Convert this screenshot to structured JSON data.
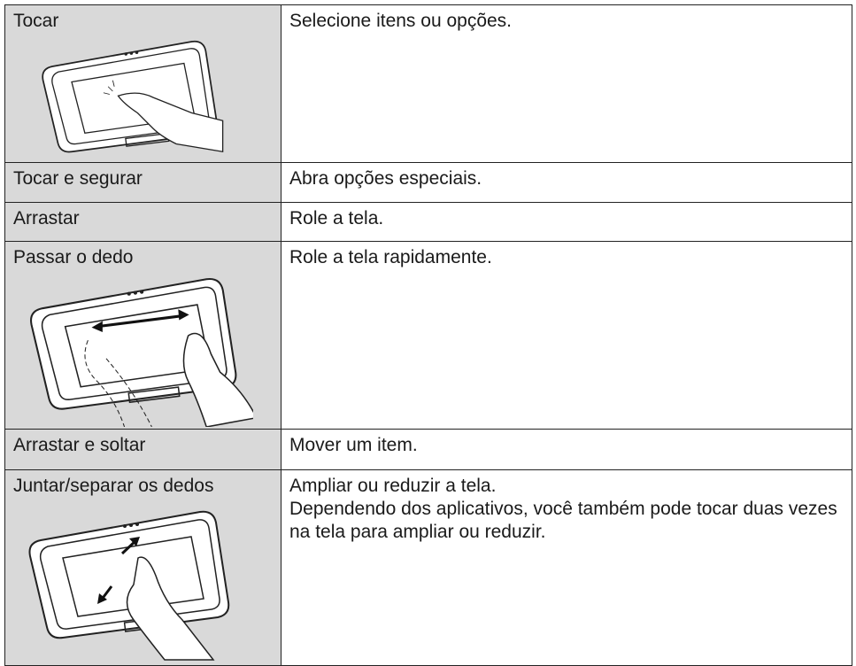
{
  "table": {
    "rows": [
      {
        "gesture": "Tocar",
        "description": [
          "Selecione itens ou opções."
        ]
      },
      {
        "gesture": "Tocar e segurar",
        "description": [
          "Abra opções especiais."
        ]
      },
      {
        "gesture": "Arrastar",
        "description": [
          "Role a tela."
        ]
      },
      {
        "gesture": "Passar o dedo",
        "description": [
          "Role a tela rapidamente."
        ]
      },
      {
        "gesture": "Arrastar e soltar",
        "description": [
          "Mover um item."
        ]
      },
      {
        "gesture": "Juntar/separar os dedos",
        "description": [
          "Ampliar ou reduzir a tela.",
          "Dependendo dos aplicativos, você também pode tocar duas vezes na tela para ampliar ou reduzir."
        ]
      }
    ]
  }
}
